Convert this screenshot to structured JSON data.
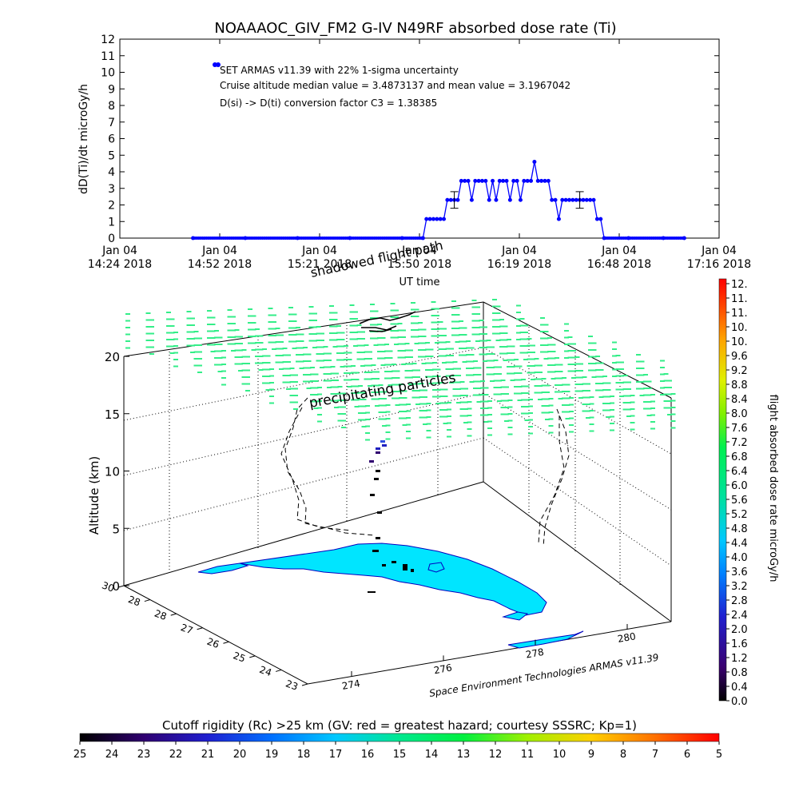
{
  "top_chart": {
    "title": "NOAAAOC_GIV_FM2 G-IV    N49RF   absorbed dose rate (Ti)",
    "ylabel": "dD(Ti)/dt microGy/h",
    "xlabel": "UT time",
    "legend": {
      "line1": "SET ARMAS v11.39 with 22% 1-sigma uncertainty",
      "line2": "Cruise altitude median value = 3.4873137 and mean value = 3.1967042",
      "line3": "D(si) -> D(ti) conversion factor C3 = 1.38385"
    }
  },
  "chart_data": [
    {
      "type": "line",
      "title": "NOAAAOC_GIV_FM2 G-IV    N49RF   absorbed dose rate (Ti)",
      "xlabel": "UT time",
      "ylabel": "dD(Ti)/dt microGy/h",
      "ylim": [
        0,
        12
      ],
      "xlim": [
        "14:24",
        "17:16"
      ],
      "x_ticks": [
        {
          "line1": "Jan 04",
          "line2": "14:24 2018"
        },
        {
          "line1": "Jan 04",
          "line2": "14:52 2018"
        },
        {
          "line1": "Jan 04",
          "line2": "15:21 2018"
        },
        {
          "line1": "Jan 04",
          "line2": "15:50 2018"
        },
        {
          "line1": "Jan 04",
          "line2": "16:19 2018"
        },
        {
          "line1": "Jan 04",
          "line2": "16:48 2018"
        },
        {
          "line1": "Jan 04",
          "line2": "17:16 2018"
        }
      ],
      "y_ticks": [
        "0",
        "1",
        "2",
        "3",
        "4",
        "5",
        "6",
        "7",
        "8",
        "9",
        "10",
        "11",
        "12"
      ],
      "series": [
        {
          "name": "SET ARMAS v11.39 with 22% 1-sigma uncertainty",
          "color": "#0000ff",
          "points": [
            [
              "14:45",
              0
            ],
            [
              "15:00",
              0
            ],
            [
              "15:15",
              0
            ],
            [
              "15:30",
              0
            ],
            [
              "15:45",
              0
            ],
            [
              "15:51",
              0
            ],
            [
              "15:52",
              1.15
            ],
            [
              "15:53",
              1.15
            ],
            [
              "15:54",
              1.15
            ],
            [
              "15:55",
              1.15
            ],
            [
              "15:56",
              1.15
            ],
            [
              "15:57",
              1.15
            ],
            [
              "15:58",
              2.3
            ],
            [
              "15:59",
              2.3
            ],
            [
              "16:00",
              2.3
            ],
            [
              "16:01",
              2.3
            ],
            [
              "16:02",
              3.45
            ],
            [
              "16:03",
              3.45
            ],
            [
              "16:04",
              3.45
            ],
            [
              "16:05",
              2.3
            ],
            [
              "16:06",
              3.45
            ],
            [
              "16:07",
              3.45
            ],
            [
              "16:08",
              3.45
            ],
            [
              "16:09",
              3.45
            ],
            [
              "16:10",
              2.3
            ],
            [
              "16:11",
              3.45
            ],
            [
              "16:12",
              2.3
            ],
            [
              "16:13",
              3.45
            ],
            [
              "16:14",
              3.45
            ],
            [
              "16:15",
              3.45
            ],
            [
              "16:16",
              2.3
            ],
            [
              "16:17",
              3.45
            ],
            [
              "16:18",
              3.45
            ],
            [
              "16:19",
              2.3
            ],
            [
              "16:20",
              3.45
            ],
            [
              "16:21",
              3.45
            ],
            [
              "16:22",
              3.45
            ],
            [
              "16:23",
              4.6
            ],
            [
              "16:24",
              3.45
            ],
            [
              "16:25",
              3.45
            ],
            [
              "16:26",
              3.45
            ],
            [
              "16:27",
              3.45
            ],
            [
              "16:28",
              2.3
            ],
            [
              "16:29",
              2.3
            ],
            [
              "16:30",
              1.15
            ],
            [
              "16:31",
              2.3
            ],
            [
              "16:32",
              2.3
            ],
            [
              "16:33",
              2.3
            ],
            [
              "16:34",
              2.3
            ],
            [
              "16:35",
              2.3
            ],
            [
              "16:36",
              2.3
            ],
            [
              "16:37",
              2.3
            ],
            [
              "16:38",
              2.3
            ],
            [
              "16:39",
              2.3
            ],
            [
              "16:40",
              2.3
            ],
            [
              "16:41",
              1.15
            ],
            [
              "16:42",
              1.15
            ],
            [
              "16:43",
              0
            ],
            [
              "16:50",
              0
            ],
            [
              "17:00",
              0
            ],
            [
              "17:06",
              0
            ]
          ],
          "error_bars": [
            {
              "x": "16:00",
              "low": 1.8,
              "high": 2.8
            },
            {
              "x": "16:36",
              "low": 1.8,
              "high": 2.8
            }
          ]
        }
      ]
    },
    {
      "type": "scatter",
      "title": "",
      "zlabel": "Altitude (km)",
      "zlim": [
        0,
        20
      ],
      "z_ticks": [
        "0",
        "5",
        "10",
        "15",
        "20"
      ],
      "lat_ticks": [
        "30",
        "28",
        "28",
        "27",
        "26",
        "25",
        "24",
        "23"
      ],
      "lon_ticks": [
        "274",
        "276",
        "278",
        "280"
      ],
      "annotations": [
        "shadowed flight path",
        "precipitating particles",
        "Space Environment Technologies ARMAS v11.39"
      ],
      "colorbar": {
        "label": "flight absorbed dose rate microGy/h",
        "ticks": [
          "12.",
          "11.",
          "11.",
          "10.",
          "10.",
          "9.6",
          "9.2",
          "8.8",
          "8.4",
          "8.0",
          "7.6",
          "7.2",
          "6.8",
          "6.4",
          "6.0",
          "5.6",
          "5.2",
          "4.8",
          "4.4",
          "4.0",
          "3.6",
          "3.2",
          "2.8",
          "2.4",
          "2.0",
          "1.6",
          "1.2",
          "0.8",
          "0.4",
          "0.0"
        ]
      },
      "flight_track_altitude_km": [
        3.5,
        4.2,
        5.5,
        7.0,
        8.5,
        9.5,
        10.5,
        11.5,
        12.2,
        12.5
      ],
      "flight_track_colors": [
        "#000000",
        "#000000",
        "#000000",
        "#000000",
        "#000000",
        "#300070",
        "#300070",
        "#2020c0",
        "#3050e0",
        "#2020c0"
      ]
    },
    {
      "type": "heatmap",
      "title": "Cutoff rigidity (Rc) >25 km (GV: red = greatest hazard; courtesy SSSRC; Kp=1)",
      "ticks": [
        "25",
        "24",
        "23",
        "22",
        "21",
        "20",
        "19",
        "18",
        "17",
        "16",
        "15",
        "14",
        "13",
        "12",
        "11",
        "10",
        "9",
        "8",
        "7",
        "6",
        "5"
      ]
    }
  ],
  "colors": {
    "series": "#0000ff",
    "land": "#00e5ff",
    "grid_markers": "#33ee88"
  }
}
